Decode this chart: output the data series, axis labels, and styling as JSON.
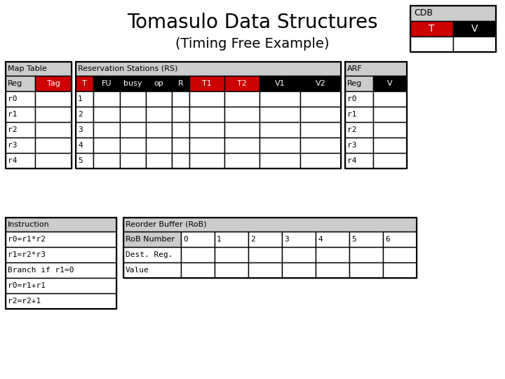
{
  "title": "Tomasulo Data Structures",
  "subtitle": "(Timing Free Example)",
  "bg_color": "#ffffff",
  "title_fontsize": 20,
  "subtitle_fontsize": 14,
  "cdb_T_color": "#cc0000",
  "cdb_V_color": "#000000",
  "cdb_label_bg": "#cccccc",
  "map_table_title": "Map Table",
  "map_table_rows": [
    "r0",
    "r1",
    "r2",
    "r3",
    "r4"
  ],
  "rs_title": "Reservation Stations (RS)",
  "rs_headers": [
    "T",
    "FU",
    "busy",
    "op",
    "R",
    "T1",
    "T2",
    "V1",
    "V2"
  ],
  "rs_header_colors": [
    "#cc0000",
    "#000000",
    "#000000",
    "#000000",
    "#000000",
    "#cc0000",
    "#cc0000",
    "#000000",
    "#000000"
  ],
  "rs_rows": [
    "1",
    "2",
    "3",
    "4",
    "5"
  ],
  "arf_title": "ARF",
  "arf_rows": [
    "r0",
    "r1",
    "r2",
    "r3",
    "r4"
  ],
  "instr_title": "Instruction",
  "instr_rows": [
    "r0=r1*r2",
    "r1=r2*r3",
    "Branch if r1=0",
    "r0=r1+r1",
    "r2=r2+1"
  ],
  "rob_title": "Reorder Buffer (RoB)",
  "rob_number_label": "RoB Number",
  "rob_numbers": [
    "0",
    "1",
    "2",
    "3",
    "4",
    "5",
    "6"
  ],
  "rob_row_labels": [
    "Dest. Reg.",
    "Value"
  ],
  "header_bg": "#cccccc",
  "red_color": "#cc0000",
  "black_color": "#000000",
  "white_color": "#ffffff",
  "mono_font": "monospace",
  "sans_font": "DejaVu Sans"
}
